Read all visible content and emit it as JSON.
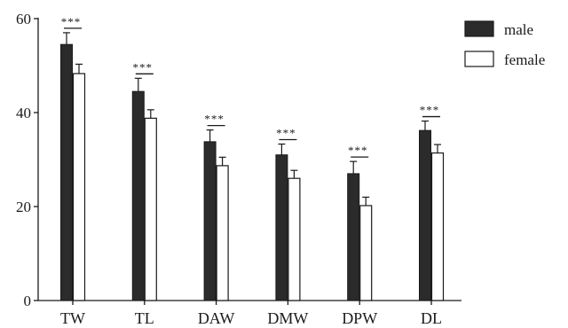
{
  "chart_data": {
    "type": "bar",
    "title": "",
    "xlabel": "",
    "ylabel": "",
    "ylim": [
      0,
      60
    ],
    "yticks": [
      "0",
      "20",
      "40",
      "60"
    ],
    "categories": [
      "TW",
      "TL",
      "DAW",
      "DMW",
      "DPW",
      "DL"
    ],
    "series": [
      {
        "name": "male",
        "color": "#2b2b2b",
        "values": [
          54.5,
          44.5,
          33.8,
          31.0,
          27.0,
          36.2
        ],
        "errors": [
          2.5,
          2.8,
          2.5,
          2.3,
          2.6,
          2.0
        ]
      },
      {
        "name": "female",
        "color": "#ffffff",
        "values": [
          48.3,
          38.8,
          28.7,
          26.0,
          20.2,
          31.4
        ],
        "errors": [
          2.0,
          1.8,
          1.8,
          1.7,
          1.8,
          1.8
        ]
      }
    ],
    "significance": [
      "***",
      "***",
      "***",
      "***",
      "***",
      "***"
    ],
    "legend_position": "top-right",
    "error_bars": true,
    "grid": false
  }
}
